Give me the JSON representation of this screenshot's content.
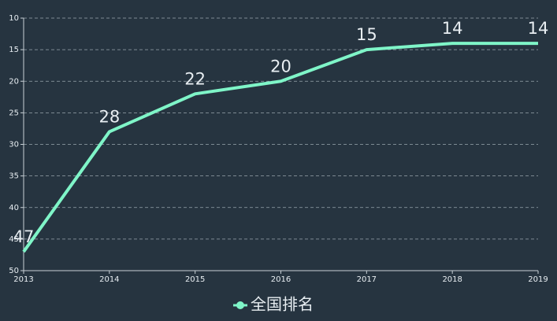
{
  "chart_data": {
    "type": "line",
    "x": [
      2013,
      2014,
      2015,
      2016,
      2017,
      2018,
      2019
    ],
    "xlim": [
      2013,
      2019
    ],
    "xticks": [
      2013,
      2014,
      2015,
      2016,
      2017,
      2018,
      2019
    ],
    "ylim": [
      50,
      10
    ],
    "yticks": [
      10,
      15,
      20,
      25,
      30,
      35,
      40,
      45,
      50
    ],
    "grid": true,
    "legend": "bottom",
    "series": [
      {
        "name": "全国排名",
        "color": "#7ff5c8",
        "values": [
          47,
          28,
          22,
          20,
          15,
          14,
          14
        ]
      }
    ]
  }
}
